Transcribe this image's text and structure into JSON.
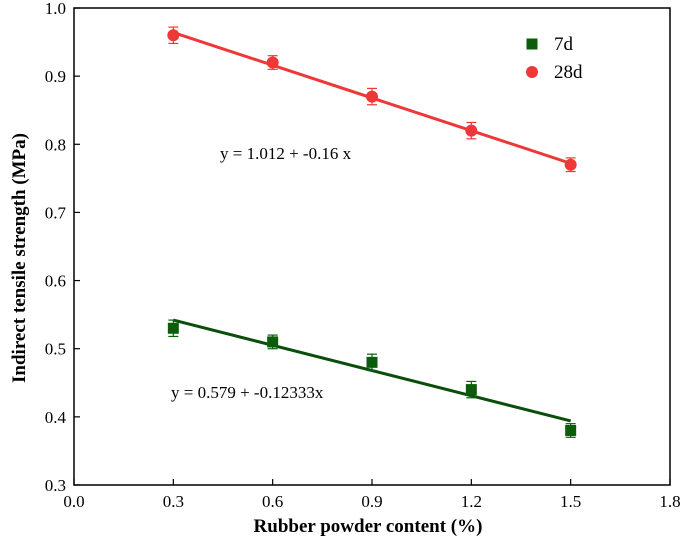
{
  "chart_data": {
    "type": "scatter",
    "xlabel": "Rubber powder content (%)",
    "ylabel": "Indirect tensile strength (MPa)",
    "xlim": [
      0.0,
      1.8
    ],
    "ylim": [
      0.3,
      1.0
    ],
    "x_ticks": [
      "0.0",
      "0.3",
      "0.6",
      "0.9",
      "1.2",
      "1.5",
      "1.8"
    ],
    "y_ticks": [
      "0.3",
      "0.4",
      "0.5",
      "0.6",
      "0.7",
      "0.8",
      "0.9",
      "1.0"
    ],
    "x_tick_values": [
      0.0,
      0.3,
      0.6,
      0.9,
      1.2,
      1.5,
      1.8
    ],
    "y_tick_values": [
      0.3,
      0.4,
      0.5,
      0.6,
      0.7,
      0.8,
      0.9,
      1.0
    ],
    "grid": false,
    "legend_position": "top-right",
    "x": [
      0.3,
      0.6,
      0.9,
      1.2,
      1.5
    ],
    "series": [
      {
        "name": "7d",
        "marker": "square",
        "color": "#0b5d0b",
        "line_color": "#0b4d0b",
        "values": [
          0.53,
          0.51,
          0.48,
          0.44,
          0.38
        ],
        "errors": [
          0.012,
          0.01,
          0.012,
          0.012,
          0.01
        ],
        "fit": {
          "intercept": 0.579,
          "slope": -0.12333,
          "label": "y = 0.579 + -0.12333x"
        }
      },
      {
        "name": "28d",
        "marker": "circle",
        "color": "#ee3838",
        "line_color": "#ee3838",
        "values": [
          0.96,
          0.92,
          0.87,
          0.82,
          0.77
        ],
        "errors": [
          0.012,
          0.01,
          0.012,
          0.012,
          0.01
        ],
        "fit": {
          "intercept": 1.012,
          "slope": -0.16,
          "label": "y = 1.012 + -0.16 x"
        }
      }
    ]
  }
}
